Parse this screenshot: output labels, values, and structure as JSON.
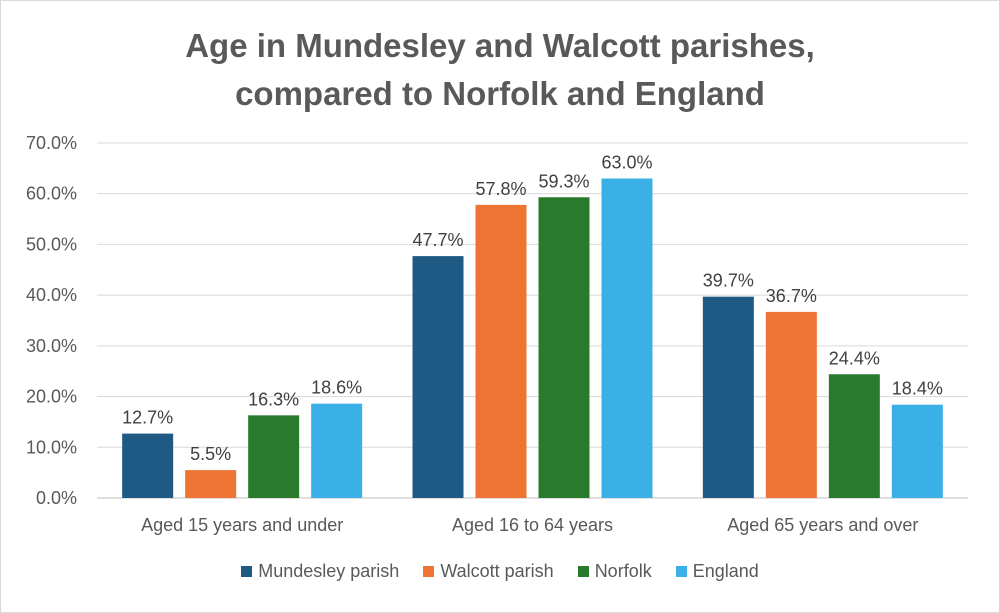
{
  "chart_data": {
    "type": "bar",
    "title_lines": [
      "Age in Mundesley and Walcott parishes,",
      "compared to Norfolk and England"
    ],
    "categories": [
      "Aged 15 years and under",
      "Aged 16 to 64 years",
      "Aged 65 years and over"
    ],
    "series": [
      {
        "name": "Mundesley parish",
        "color": "#1f5a85",
        "values": [
          12.7,
          47.7,
          39.7
        ],
        "labels": [
          "12.7%",
          "47.7%",
          "39.7%"
        ]
      },
      {
        "name": "Walcott parish",
        "color": "#ee7433",
        "values": [
          5.5,
          57.8,
          36.7
        ],
        "labels": [
          "5.5%",
          "57.8%",
          "36.7%"
        ]
      },
      {
        "name": "Norfolk",
        "color": "#2a7a2e",
        "values": [
          16.3,
          59.3,
          24.4
        ],
        "labels": [
          "16.3%",
          "59.3%",
          "24.4%"
        ]
      },
      {
        "name": "England",
        "color": "#3bb0e6",
        "values": [
          18.6,
          63.0,
          18.4
        ],
        "labels": [
          "18.6%",
          "63.0%",
          "18.4%"
        ]
      }
    ],
    "ylim": [
      0,
      70
    ],
    "yticks": [
      "0.0%",
      "10.0%",
      "20.0%",
      "30.0%",
      "40.0%",
      "50.0%",
      "60.0%",
      "70.0%"
    ],
    "grid": true,
    "legend_position": "bottom"
  }
}
